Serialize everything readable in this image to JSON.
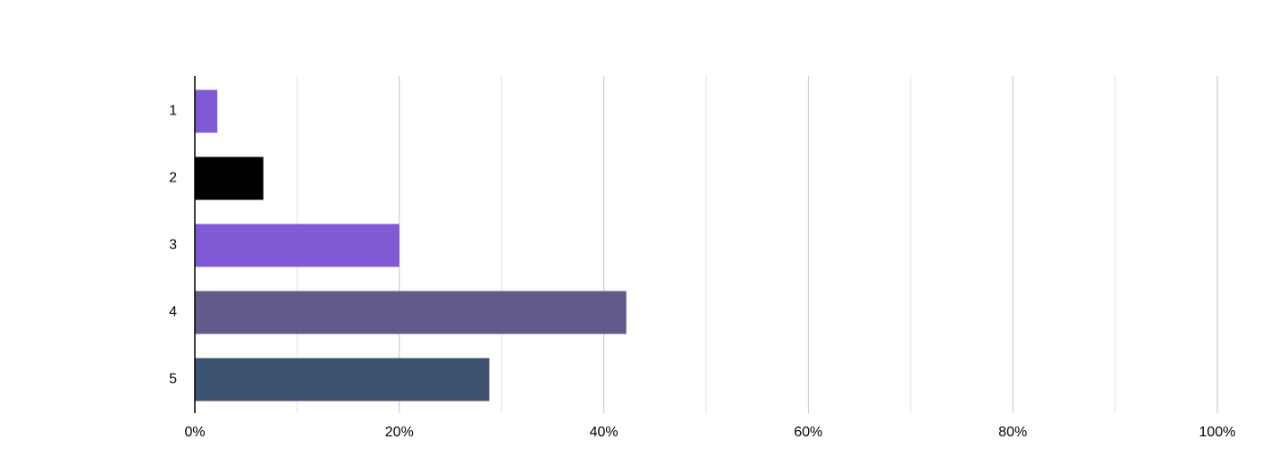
{
  "chart_data": {
    "type": "hbar",
    "categories": [
      "1",
      "2",
      "3",
      "4",
      "5"
    ],
    "values": [
      2.2,
      6.7,
      20,
      42.2,
      28.8
    ],
    "colors": [
      "#805ad5",
      "#000000",
      "#805ad5",
      "#615a8a",
      "#3d5170"
    ],
    "xlim": [
      0,
      100
    ],
    "xticks": [
      {
        "value": 0,
        "label": "0%"
      },
      {
        "value": 20,
        "label": "20%"
      },
      {
        "value": 40,
        "label": "40%"
      },
      {
        "value": 60,
        "label": "60%"
      },
      {
        "value": 80,
        "label": "80%"
      },
      {
        "value": 100,
        "label": "100%"
      }
    ],
    "xminor": [
      10,
      30,
      50,
      70,
      90
    ],
    "grid": true
  }
}
